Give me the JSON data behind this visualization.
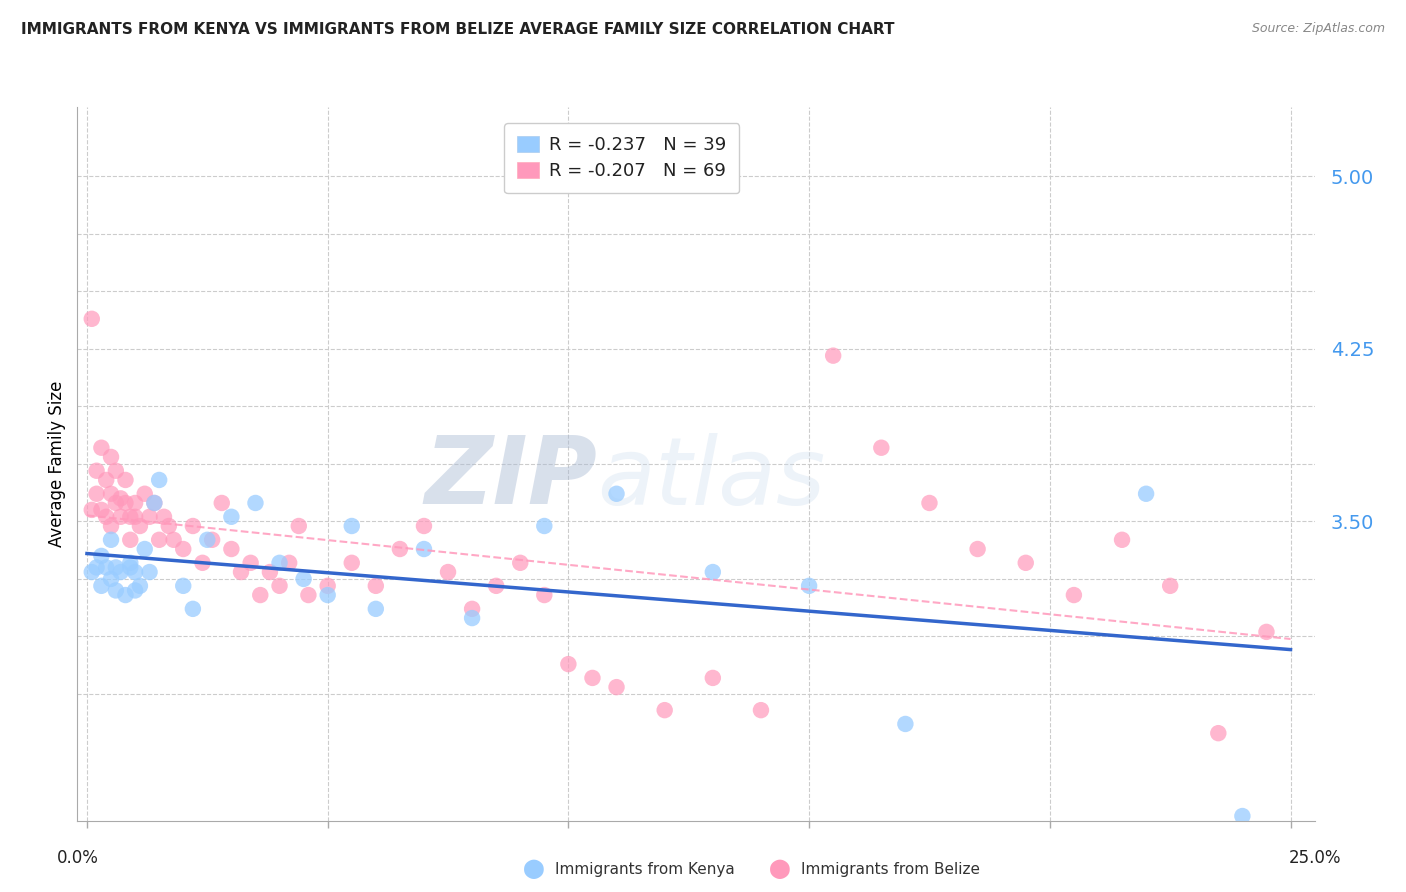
{
  "title": "IMMIGRANTS FROM KENYA VS IMMIGRANTS FROM BELIZE AVERAGE FAMILY SIZE CORRELATION CHART",
  "source": "Source: ZipAtlas.com",
  "ylabel": "Average Family Size",
  "ylim": [
    2.2,
    5.3
  ],
  "xlim": [
    -0.002,
    0.255
  ],
  "kenya_color": "#99CCFF",
  "belize_color": "#FF99BB",
  "kenya_line_color": "#3366CC",
  "belize_line_color": "#FF99BB",
  "kenya_R": -0.237,
  "kenya_N": 39,
  "belize_R": -0.207,
  "belize_N": 69,
  "watermark_zip": "ZIP",
  "watermark_atlas": "atlas",
  "ytick_vals": [
    2.75,
    3.0,
    3.25,
    3.5,
    3.75,
    4.0,
    4.25,
    4.5,
    4.75,
    5.0
  ],
  "ytick_labels": [
    "",
    "",
    "",
    "3.50",
    "",
    "",
    "4.25",
    "",
    "",
    "5.00"
  ],
  "xtick_vals": [
    0.0,
    0.05,
    0.1,
    0.15,
    0.2,
    0.25
  ],
  "kenya_x": [
    0.001,
    0.002,
    0.003,
    0.003,
    0.004,
    0.005,
    0.005,
    0.006,
    0.006,
    0.007,
    0.008,
    0.009,
    0.009,
    0.01,
    0.01,
    0.011,
    0.012,
    0.013,
    0.014,
    0.015,
    0.02,
    0.022,
    0.025,
    0.03,
    0.035,
    0.04,
    0.045,
    0.05,
    0.055,
    0.06,
    0.07,
    0.08,
    0.095,
    0.11,
    0.13,
    0.15,
    0.17,
    0.22,
    0.24
  ],
  "kenya_y": [
    3.28,
    3.3,
    3.22,
    3.35,
    3.3,
    3.25,
    3.42,
    3.2,
    3.3,
    3.28,
    3.18,
    3.3,
    3.32,
    3.28,
    3.2,
    3.22,
    3.38,
    3.28,
    3.58,
    3.68,
    3.22,
    3.12,
    3.42,
    3.52,
    3.58,
    3.32,
    3.25,
    3.18,
    3.48,
    3.12,
    3.38,
    3.08,
    3.48,
    3.62,
    3.28,
    3.22,
    2.62,
    3.62,
    2.22
  ],
  "belize_x": [
    0.001,
    0.001,
    0.002,
    0.002,
    0.003,
    0.003,
    0.004,
    0.004,
    0.005,
    0.005,
    0.005,
    0.006,
    0.006,
    0.007,
    0.007,
    0.008,
    0.008,
    0.009,
    0.009,
    0.01,
    0.01,
    0.011,
    0.012,
    0.013,
    0.014,
    0.015,
    0.016,
    0.017,
    0.018,
    0.02,
    0.022,
    0.024,
    0.026,
    0.028,
    0.03,
    0.032,
    0.034,
    0.036,
    0.038,
    0.04,
    0.042,
    0.044,
    0.046,
    0.05,
    0.055,
    0.06,
    0.065,
    0.07,
    0.075,
    0.08,
    0.085,
    0.09,
    0.095,
    0.1,
    0.105,
    0.11,
    0.12,
    0.13,
    0.14,
    0.155,
    0.165,
    0.175,
    0.185,
    0.195,
    0.205,
    0.215,
    0.225,
    0.235,
    0.245
  ],
  "belize_y": [
    4.38,
    3.55,
    3.72,
    3.62,
    3.82,
    3.55,
    3.68,
    3.52,
    3.78,
    3.62,
    3.48,
    3.58,
    3.72,
    3.6,
    3.52,
    3.58,
    3.68,
    3.52,
    3.42,
    3.58,
    3.52,
    3.48,
    3.62,
    3.52,
    3.58,
    3.42,
    3.52,
    3.48,
    3.42,
    3.38,
    3.48,
    3.32,
    3.42,
    3.58,
    3.38,
    3.28,
    3.32,
    3.18,
    3.28,
    3.22,
    3.32,
    3.48,
    3.18,
    3.22,
    3.32,
    3.22,
    3.38,
    3.48,
    3.28,
    3.12,
    3.22,
    3.32,
    3.18,
    2.88,
    2.82,
    2.78,
    2.68,
    2.82,
    2.68,
    4.22,
    3.82,
    3.58,
    3.38,
    3.32,
    3.18,
    3.42,
    3.22,
    2.58,
    3.02
  ]
}
